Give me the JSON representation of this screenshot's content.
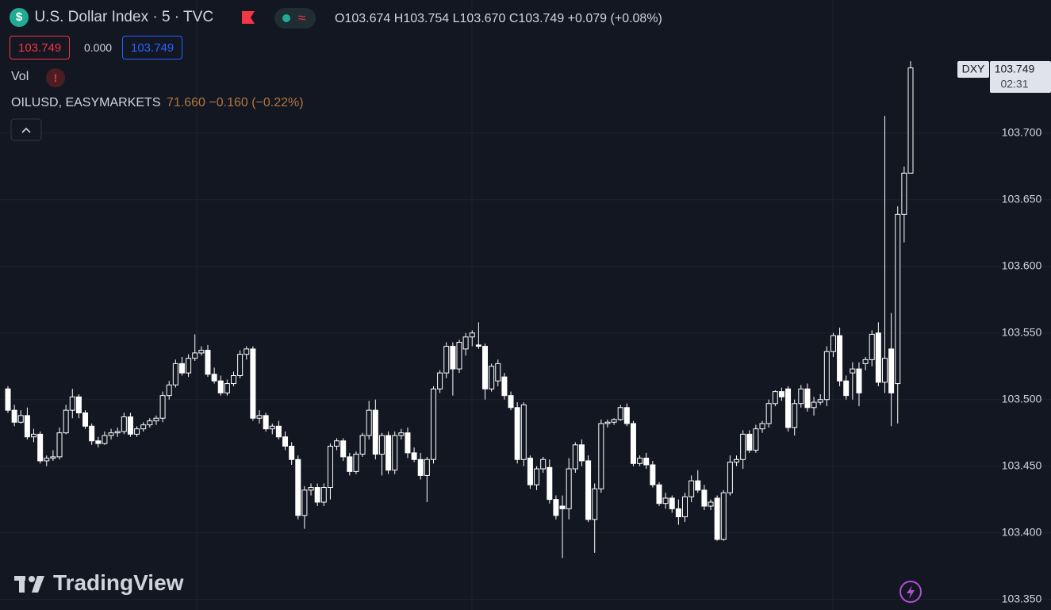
{
  "header": {
    "currency_icon": "$",
    "symbol": "U.S. Dollar Index · 5 · TVC",
    "compare_icon": "≈",
    "open_label": "O",
    "open": "103.674",
    "high_label": "H",
    "high": "103.754",
    "low_label": "L",
    "low": "103.670",
    "close_label": "C",
    "close": "103.749",
    "change": "+0.079",
    "change_pct": "(+0.08%)"
  },
  "price_boxes": {
    "sell": "103.749",
    "spread": "0.000",
    "buy": "103.749"
  },
  "indicators": {
    "vol": "Vol",
    "alert_icon": "!",
    "compare_symbol": "OILUSD, EASYMARKETS",
    "compare_values": "71.660 −0.160 (−0.22%)"
  },
  "price_label": {
    "symbol": "DXY",
    "price": "103.749",
    "countdown": "02:31"
  },
  "logo": "TradingView",
  "chart_data": {
    "type": "candlestick",
    "open": [
      103.508,
      103.492,
      103.483,
      103.488,
      103.472,
      103.474,
      103.454,
      103.456,
      103.457,
      103.475,
      103.492,
      103.502,
      103.49,
      103.48,
      103.469,
      103.467,
      103.473,
      103.475,
      103.476,
      103.487,
      103.474,
      103.478,
      103.481,
      103.484,
      103.486,
      103.503,
      103.511,
      103.527,
      103.52,
      103.531,
      103.535,
      103.537,
      103.519,
      103.514,
      103.505,
      103.512,
      103.518,
      103.534,
      103.538,
      103.486,
      103.488,
      103.478,
      103.48,
      103.472,
      103.465,
      103.455,
      103.413,
      103.432,
      103.434,
      103.423,
      103.434,
      103.465,
      103.469,
      103.457,
      103.446,
      103.459,
      103.473,
      103.492,
      103.459,
      103.473,
      103.447,
      103.473,
      103.475,
      103.46,
      103.455,
      103.443,
      103.455,
      103.508,
      103.52,
      103.54,
      103.523,
      103.538,
      103.547,
      103.541,
      103.54,
      103.508,
      103.514,
      103.517,
      103.503,
      103.494,
      103.455,
      103.456,
      103.436,
      103.448,
      103.449,
      103.425,
      103.42,
      103.418,
      103.448,
      103.466,
      103.454,
      103.41,
      103.433,
      103.482,
      103.483,
      103.485,
      103.494,
      103.482,
      103.452,
      103.456,
      103.451,
      103.436,
      103.422,
      103.426,
      103.418,
      103.412,
      103.427,
      103.439,
      103.432,
      103.42,
      103.426,
      103.395,
      103.43,
      103.453,
      103.455,
      103.474,
      103.462,
      103.478,
      103.482,
      103.497,
      103.506,
      103.508,
      103.479,
      103.497,
      103.508,
      103.494,
      103.498,
      103.5,
      103.536,
      103.548,
      103.514,
      103.52,
      103.523,
      103.527,
      103.53,
      103.55,
      103.513,
      103.538,
      103.512,
      103.639,
      103.67
    ],
    "high": [
      103.51,
      103.496,
      103.492,
      103.494,
      103.478,
      103.476,
      103.458,
      103.462,
      103.479,
      103.496,
      103.508,
      103.504,
      103.492,
      103.482,
      103.472,
      103.476,
      103.478,
      103.479,
      103.49,
      103.49,
      103.48,
      103.483,
      103.486,
      103.488,
      103.506,
      103.514,
      103.53,
      103.532,
      103.534,
      103.549,
      103.54,
      103.541,
      103.524,
      103.518,
      103.515,
      103.521,
      103.537,
      103.54,
      103.54,
      103.492,
      103.49,
      103.482,
      103.484,
      103.476,
      103.468,
      103.458,
      103.435,
      103.437,
      103.437,
      103.437,
      103.467,
      103.471,
      103.471,
      103.46,
      103.461,
      103.475,
      103.499,
      103.5,
      103.475,
      103.476,
      103.476,
      103.478,
      103.479,
      103.464,
      103.46,
      103.457,
      103.51,
      103.522,
      103.543,
      103.543,
      103.545,
      103.55,
      103.552,
      103.558,
      103.542,
      103.527,
      103.53,
      103.52,
      103.506,
      103.498,
      103.498,
      103.458,
      103.45,
      103.457,
      103.455,
      103.428,
      103.428,
      103.456,
      103.468,
      103.47,
      103.458,
      103.437,
      103.485,
      103.485,
      103.486,
      103.496,
      103.497,
      103.484,
      103.458,
      103.46,
      103.454,
      103.438,
      103.43,
      103.428,
      103.425,
      103.43,
      103.443,
      103.447,
      103.436,
      103.425,
      103.428,
      103.432,
      103.458,
      103.458,
      103.477,
      103.477,
      103.481,
      103.484,
      103.5,
      103.507,
      103.509,
      103.51,
      103.5,
      103.511,
      103.512,
      103.502,
      103.504,
      103.54,
      103.55,
      103.554,
      103.518,
      103.528,
      103.528,
      103.532,
      103.552,
      103.558,
      103.713,
      103.565,
      103.645,
      103.675,
      103.754
    ],
    "low": [
      103.49,
      103.48,
      103.482,
      103.47,
      103.468,
      103.452,
      103.45,
      103.454,
      103.455,
      103.474,
      103.486,
      103.486,
      103.478,
      103.466,
      103.464,
      103.466,
      103.47,
      103.472,
      103.474,
      103.472,
      103.472,
      103.476,
      103.479,
      103.481,
      103.483,
      103.5,
      103.509,
      103.518,
      103.517,
      103.529,
      103.533,
      103.517,
      103.512,
      103.503,
      103.503,
      103.51,
      103.516,
      103.53,
      103.484,
      103.482,
      103.476,
      103.474,
      103.47,
      103.462,
      103.451,
      103.41,
      103.403,
      103.428,
      103.42,
      103.42,
      103.425,
      103.462,
      103.454,
      103.443,
      103.444,
      103.457,
      103.47,
      103.455,
      103.443,
      103.444,
      103.444,
      103.47,
      103.456,
      103.453,
      103.44,
      103.423,
      103.452,
      103.505,
      103.516,
      103.503,
      103.52,
      103.533,
      103.54,
      103.538,
      103.5,
      103.506,
      103.51,
      103.5,
      103.492,
      103.452,
      103.45,
      103.433,
      103.432,
      103.445,
      103.422,
      103.41,
      103.381,
      103.41,
      103.445,
      103.45,
      103.408,
      103.385,
      103.43,
      103.479,
      103.481,
      103.484,
      103.48,
      103.45,
      103.45,
      103.448,
      103.434,
      103.42,
      103.418,
      103.415,
      103.406,
      103.408,
      103.423,
      103.43,
      103.417,
      103.417,
      103.394,
      103.394,
      103.428,
      103.45,
      103.448,
      103.46,
      103.46,
      103.475,
      103.479,
      103.495,
      103.499,
      103.476,
      103.473,
      103.494,
      103.491,
      103.488,
      103.496,
      103.495,
      103.532,
      103.51,
      103.5,
      103.5,
      103.495,
      103.522,
      103.525,
      103.51,
      103.505,
      103.48,
      103.482,
      103.618,
      103.67
    ],
    "close": [
      103.492,
      103.483,
      103.488,
      103.472,
      103.474,
      103.454,
      103.456,
      103.457,
      103.475,
      103.492,
      103.502,
      103.49,
      103.48,
      103.469,
      103.467,
      103.473,
      103.475,
      103.476,
      103.487,
      103.474,
      103.478,
      103.481,
      103.484,
      103.486,
      103.503,
      103.511,
      103.527,
      103.52,
      103.531,
      103.535,
      103.537,
      103.519,
      103.514,
      103.505,
      103.512,
      103.518,
      103.534,
      103.538,
      103.486,
      103.488,
      103.478,
      103.48,
      103.472,
      103.465,
      103.455,
      103.413,
      103.432,
      103.434,
      103.423,
      103.434,
      103.465,
      103.469,
      103.457,
      103.446,
      103.459,
      103.473,
      103.492,
      103.459,
      103.473,
      103.447,
      103.473,
      103.475,
      103.46,
      103.455,
      103.443,
      103.455,
      103.508,
      103.52,
      103.54,
      103.523,
      103.543,
      103.547,
      103.55,
      103.54,
      103.508,
      103.525,
      103.527,
      103.503,
      103.494,
      103.455,
      103.496,
      103.436,
      103.448,
      103.455,
      103.425,
      103.413,
      103.418,
      103.448,
      103.466,
      103.454,
      103.41,
      103.433,
      103.482,
      103.483,
      103.485,
      103.494,
      103.482,
      103.452,
      103.456,
      103.451,
      103.436,
      103.422,
      103.426,
      103.418,
      103.412,
      103.427,
      103.439,
      103.432,
      103.42,
      103.423,
      103.395,
      103.43,
      103.453,
      103.455,
      103.474,
      103.462,
      103.478,
      103.482,
      103.497,
      103.506,
      103.502,
      103.479,
      103.497,
      103.508,
      103.494,
      103.498,
      103.5,
      103.536,
      103.548,
      103.514,
      103.503,
      103.523,
      103.505,
      103.53,
      103.549,
      103.513,
      103.531,
      103.505,
      103.639,
      103.67,
      103.749
    ],
    "ylim": [
      103.342,
      103.8
    ],
    "yticks": [
      {
        "value": 103.35,
        "label": "103.350"
      },
      {
        "value": 103.4,
        "label": "103.400"
      },
      {
        "value": 103.45,
        "label": "103.450"
      },
      {
        "value": 103.5,
        "label": "103.500"
      },
      {
        "value": 103.55,
        "label": "103.550"
      },
      {
        "value": 103.6,
        "label": "103.600"
      },
      {
        "value": 103.65,
        "label": "103.650"
      },
      {
        "value": 103.7,
        "label": "103.700"
      }
    ],
    "grid": true,
    "up_color": "#131722",
    "down_color": "#ffffff",
    "wick_color": "#ffffff"
  }
}
